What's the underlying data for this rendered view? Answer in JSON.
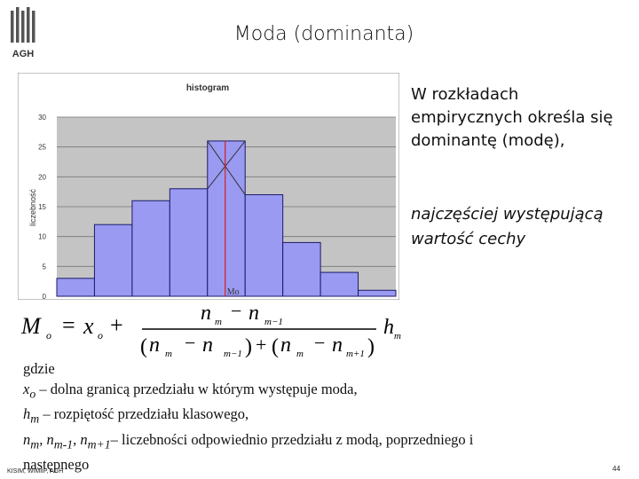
{
  "header": {
    "title": "Moda (dominanta)",
    "logo_text": "AGH"
  },
  "chart_data": {
    "type": "bar",
    "title": "histogram",
    "ylabel": "liczebność",
    "xlabel": "",
    "ylim": [
      0,
      30
    ],
    "yticks": [
      "0",
      "5",
      "10",
      "15",
      "20",
      "25",
      "30"
    ],
    "values": [
      3,
      12,
      16,
      18,
      26,
      17,
      9,
      4,
      1
    ],
    "mode_label": "Mo",
    "grid": true
  },
  "right": {
    "line1": "W rozkładach",
    "line2": "empirycznych określa się",
    "line3": "dominantę (modę),",
    "italic1": "najczęściej występującą",
    "italic2": "wartość cechy"
  },
  "formula": {
    "mo": "M",
    "mo_sub": "o",
    "eq": "=",
    "x": "x",
    "x_sub": "o",
    "plus": "+",
    "n": "n",
    "minus": "−",
    "sub_m": "m",
    "sub_m1": "m−1",
    "sub_p1": "m+1",
    "h": "h",
    "h_sub": "m",
    "lp": "(",
    "rp": ")"
  },
  "description": {
    "line0": "gdzie",
    "x": "x",
    "x_sub": "o",
    "line1_rest": " – dolna granicą przedziału w którym występuje moda,",
    "h": "h",
    "h_sub": "m",
    "line2_rest": " – rozpiętość przedziału klasowego,",
    "n": "n",
    "n_sub1": "m",
    "sep1": ", ",
    "n_sub2": "m-1",
    "sep2": ", ",
    "n_sub3": "m+1",
    "line3_rest": "– liczebności odpowiednio przedziału z modą, poprzedniego i",
    "line4": "następnego"
  },
  "footer": {
    "left": "KISIM, WIMiIP, AGH",
    "right": "44"
  },
  "colors": {
    "bar_fill": "#9a9af2",
    "bar_stroke": "#1a1a6a",
    "plot_bg": "#c4c4c4",
    "mode_line": "#d02020",
    "logo": "#555555"
  }
}
